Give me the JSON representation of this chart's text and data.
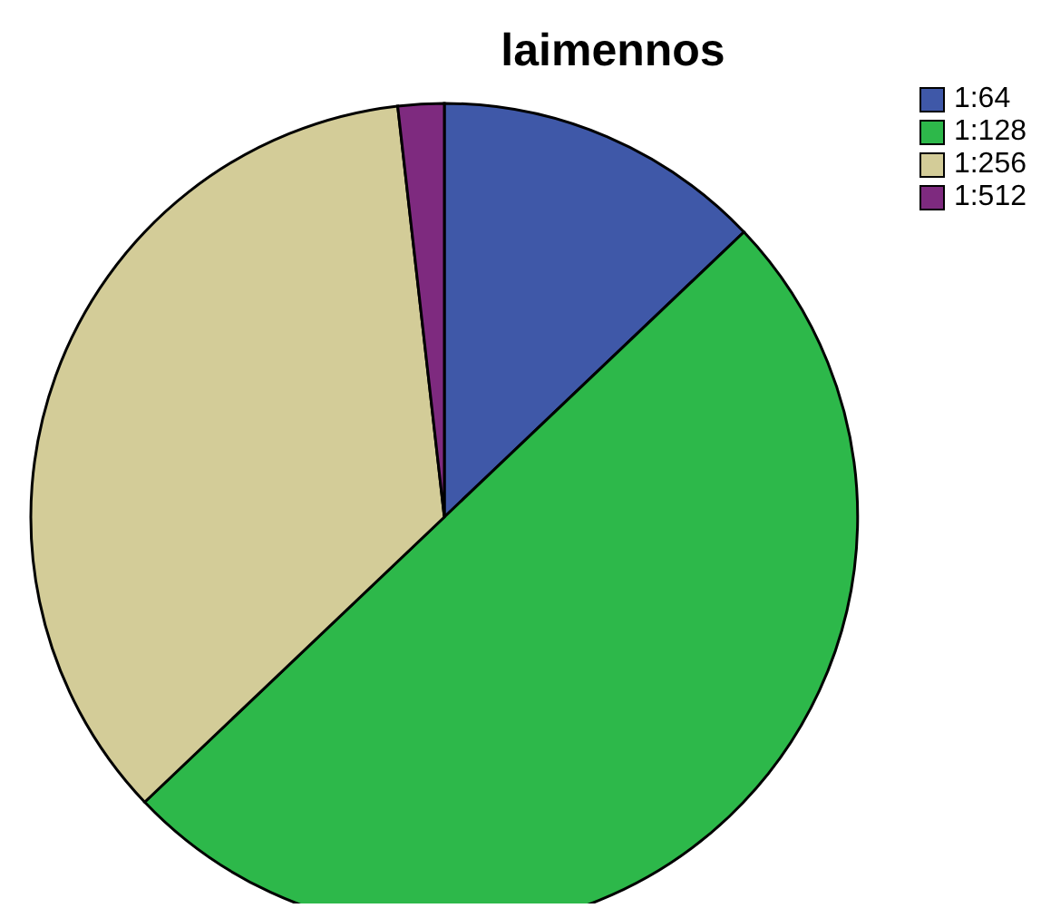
{
  "chart_data": {
    "type": "pie",
    "title": "laimennos",
    "categories": [
      "1:64",
      "1:128",
      "1:256",
      "1:512"
    ],
    "values": [
      12.9,
      50,
      35.3,
      1.8
    ],
    "colors": [
      "#3f58a8",
      "#2db84a",
      "#d3cc98",
      "#7e2a7f"
    ],
    "legend": "top right"
  }
}
